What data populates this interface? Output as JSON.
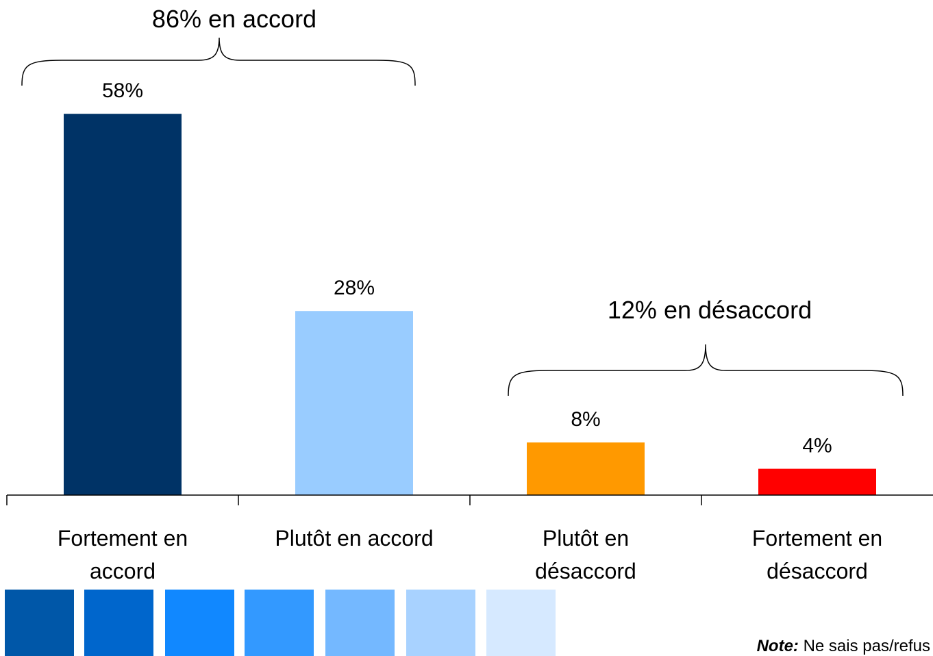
{
  "chart_data": {
    "type": "bar",
    "categories": [
      "Fortement en accord",
      "Plutôt en accord",
      "Plutôt en désaccord",
      "Fortement en désaccord"
    ],
    "series": [
      {
        "name": null,
        "values": [
          58,
          28,
          8,
          4
        ],
        "value_labels": [
          "58%",
          "28%",
          "8%",
          "4%"
        ],
        "colors": [
          "#003366",
          "#99ccff",
          "#ff9900",
          "#ff0000"
        ]
      }
    ],
    "ylim": [
      0,
      60
    ],
    "annotations": [
      "86% en accord",
      "12% en désaccord"
    ],
    "note": {
      "label": "Note:",
      "text": "Ne sais pas/refus"
    }
  }
}
